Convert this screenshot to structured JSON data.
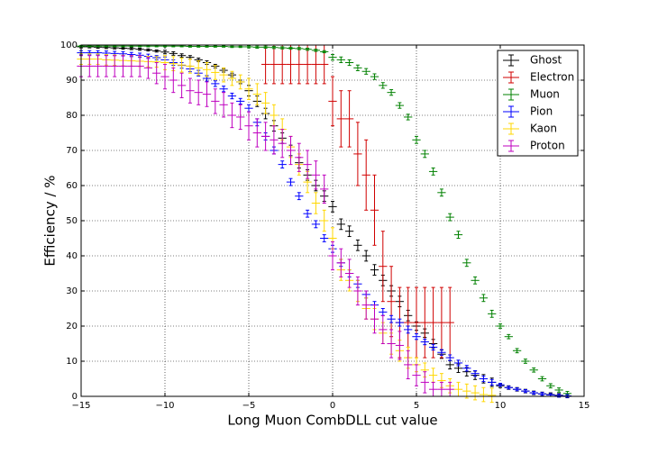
{
  "chart_data": {
    "type": "errorbar",
    "xlabel": "Long Muon CombDLL cut value",
    "ylabel": "Efficiency / %",
    "xlim": [
      -15,
      15
    ],
    "ylim": [
      0,
      100
    ],
    "xticks": [
      {
        "value": -15,
        "label": "−15"
      },
      {
        "value": -10,
        "label": "−10"
      },
      {
        "value": -5,
        "label": "−5"
      },
      0,
      5,
      10,
      15
    ],
    "yticks": [
      0,
      10,
      20,
      30,
      40,
      50,
      60,
      70,
      80,
      90,
      100
    ],
    "grid": true,
    "legend": "upper right",
    "xerr": 0.25,
    "x": [
      -15,
      -14.5,
      -14,
      -13.5,
      -13,
      -12.5,
      -12,
      -11.5,
      -11,
      -10.5,
      -10,
      -9.5,
      -9,
      -8.5,
      -8,
      -7.5,
      -7,
      -6.5,
      -6,
      -5.5,
      -5,
      -4.5,
      -4,
      -3.5,
      -3,
      -2.5,
      -2,
      -1.5,
      -1,
      -0.5,
      0,
      0.5,
      1,
      1.5,
      2,
      2.5,
      3,
      3.5,
      4,
      4.5,
      5,
      5.5,
      6,
      6.5,
      7,
      7.5,
      8,
      8.5,
      9,
      9.5,
      10,
      10.5,
      11,
      11.5,
      12,
      12.5,
      13,
      13.5,
      14,
      14.5
    ],
    "series": [
      {
        "name": "Ghost",
        "color": "#000000",
        "values": [
          99.5,
          99.5,
          99.4,
          99.3,
          99.2,
          99.1,
          99,
          98.8,
          98.6,
          98.3,
          98,
          97.6,
          97,
          96.5,
          95.8,
          95,
          94,
          92.8,
          91.5,
          89.5,
          87,
          84,
          80.5,
          77,
          73.5,
          70,
          66.5,
          63,
          60,
          57,
          54,
          49,
          47,
          43,
          40,
          36,
          33,
          30,
          27,
          23,
          20,
          18,
          15,
          12,
          9,
          8,
          7,
          6,
          5,
          4,
          3,
          2.5,
          2,
          1.5,
          1,
          0.7,
          0.5,
          0.3,
          0.1,
          null
        ],
        "errors": [
          0.3,
          0.3,
          0.3,
          0.3,
          0.3,
          0.3,
          0.3,
          0.3,
          0.3,
          0.3,
          0.5,
          0.5,
          0.5,
          0.5,
          0.5,
          0.5,
          0.5,
          0.5,
          0.5,
          0.5,
          1.5,
          1.5,
          1.5,
          1.5,
          1.5,
          1.5,
          1.5,
          1.5,
          1.5,
          1.5,
          1.5,
          1.5,
          1.5,
          1.5,
          1.5,
          1.5,
          1.5,
          1.5,
          1.5,
          1.5,
          1.2,
          1.2,
          1.2,
          1.2,
          1.2,
          1.2,
          1.2,
          1.2,
          1.2,
          1.2,
          0.5,
          0.5,
          0.5,
          0.5,
          0.5,
          0.5,
          0.5,
          0.5,
          0.5,
          null
        ]
      },
      {
        "name": "Electron",
        "color": "#d00000",
        "values": [
          null,
          null,
          null,
          null,
          null,
          null,
          null,
          null,
          null,
          null,
          null,
          null,
          null,
          null,
          null,
          null,
          null,
          null,
          null,
          null,
          null,
          null,
          94.5,
          94.5,
          94.5,
          94.5,
          94.5,
          94.5,
          94.5,
          94.5,
          84,
          79,
          79,
          69,
          63,
          53,
          37,
          27,
          21,
          21,
          21,
          21,
          21,
          21,
          21,
          null,
          null,
          null,
          null,
          null,
          null,
          null,
          null,
          null,
          null,
          null,
          null,
          null,
          null,
          null
        ],
        "errors": [
          null,
          null,
          null,
          null,
          null,
          null,
          null,
          null,
          null,
          null,
          null,
          null,
          null,
          null,
          null,
          null,
          null,
          null,
          null,
          null,
          null,
          null,
          5.5,
          5.5,
          5.5,
          5.5,
          5.5,
          5.5,
          5.5,
          5.5,
          7,
          8,
          8,
          9,
          10,
          10,
          10,
          10,
          10,
          10,
          10,
          10,
          10,
          10,
          10,
          null,
          null,
          null,
          null,
          null,
          null,
          null,
          null,
          null,
          null,
          null,
          null,
          null,
          null,
          null
        ]
      },
      {
        "name": "Muon",
        "color": "#008000",
        "values": [
          99.7,
          99.7,
          99.7,
          99.7,
          99.7,
          99.7,
          99.7,
          99.7,
          99.7,
          99.7,
          99.7,
          99.7,
          99.7,
          99.6,
          99.6,
          99.6,
          99.6,
          99.6,
          99.5,
          99.5,
          99.5,
          99.4,
          99.4,
          99.3,
          99.2,
          99.1,
          99,
          98.8,
          98.5,
          98.1,
          96.5,
          95.8,
          95,
          93.5,
          92.5,
          91,
          88.5,
          86.5,
          82.8,
          79.5,
          73,
          69,
          64,
          58,
          51,
          46,
          38,
          33,
          28,
          23.5,
          20,
          17,
          13,
          10,
          7.5,
          5,
          3,
          1.8,
          0.8,
          null
        ],
        "errors": [
          0.2,
          0.2,
          0.2,
          0.2,
          0.2,
          0.2,
          0.2,
          0.2,
          0.2,
          0.2,
          0.2,
          0.2,
          0.2,
          0.2,
          0.2,
          0.2,
          0.2,
          0.2,
          0.2,
          0.2,
          0.3,
          0.3,
          0.3,
          0.3,
          0.3,
          0.3,
          0.3,
          0.3,
          0.3,
          0.3,
          0.8,
          0.8,
          0.8,
          0.8,
          0.8,
          0.8,
          0.8,
          0.8,
          0.8,
          0.8,
          1,
          1,
          1,
          1,
          1,
          1,
          1,
          1,
          1,
          1,
          0.6,
          0.6,
          0.6,
          0.6,
          0.6,
          0.6,
          0.6,
          0.6,
          0.6,
          null
        ]
      },
      {
        "name": "Pion",
        "color": "#0000ff",
        "values": [
          97.8,
          97.8,
          97.8,
          97.7,
          97.6,
          97.5,
          97.3,
          97.1,
          96.8,
          96.4,
          95.8,
          95,
          94.2,
          93.2,
          92,
          90.5,
          89,
          87.5,
          85.5,
          84,
          82,
          78,
          74,
          70,
          66,
          61,
          57,
          52,
          49,
          45,
          42,
          38,
          35,
          32,
          29,
          26,
          24,
          22,
          21,
          19,
          17,
          15.5,
          14,
          12.5,
          11,
          9.5,
          8,
          6.5,
          5,
          4,
          3.3,
          2.5,
          2,
          1.5,
          1,
          0.7,
          0.4,
          0.2,
          0.1,
          null
        ],
        "errors": [
          0.6,
          0.6,
          0.6,
          0.6,
          0.6,
          0.6,
          0.6,
          0.6,
          0.6,
          0.6,
          0.8,
          0.8,
          0.8,
          0.8,
          0.8,
          0.8,
          0.8,
          0.8,
          0.8,
          0.8,
          1,
          1,
          1,
          1,
          1,
          1,
          1,
          1,
          1,
          1,
          1,
          1,
          1,
          1,
          1,
          1,
          1,
          1,
          1,
          1,
          0.8,
          0.8,
          0.8,
          0.8,
          0.8,
          0.8,
          0.8,
          0.8,
          0.8,
          0.8,
          0.4,
          0.4,
          0.4,
          0.4,
          0.4,
          0.4,
          0.4,
          0.4,
          0.4,
          null
        ]
      },
      {
        "name": "Kaon",
        "color": "#ffd700",
        "values": [
          96,
          96,
          96,
          95.8,
          95.7,
          95.6,
          95.5,
          95.4,
          95.3,
          95.2,
          95,
          94.7,
          94.3,
          94,
          93.5,
          93,
          92.2,
          91.5,
          90.5,
          89.5,
          87.5,
          86,
          83.5,
          80,
          76,
          71,
          66,
          61,
          55,
          50,
          45,
          36,
          33,
          30,
          25,
          22,
          18,
          15,
          13,
          11,
          9,
          7.5,
          6,
          4.5,
          3,
          2,
          1.5,
          1,
          0.5,
          0.3,
          null,
          null,
          null,
          null,
          null,
          null,
          null,
          null,
          null,
          null
        ],
        "errors": [
          1.5,
          1.5,
          1.5,
          1.5,
          1.5,
          1.5,
          1.5,
          1.5,
          1.5,
          1.5,
          2,
          2,
          2,
          2,
          2,
          2,
          2,
          2,
          2,
          2,
          3,
          3,
          3,
          3,
          3,
          3,
          3,
          3,
          3,
          3,
          3,
          3,
          3,
          3,
          3,
          3,
          3,
          3,
          3,
          3,
          2,
          2,
          2,
          2,
          2,
          2,
          2,
          2,
          2,
          2,
          null,
          null,
          null,
          null,
          null,
          null,
          null,
          null,
          null,
          null
        ]
      },
      {
        "name": "Proton",
        "color": "#bf00bf",
        "values": [
          94,
          94,
          94,
          94,
          94,
          94,
          94,
          94,
          93.5,
          92,
          91,
          90,
          88.5,
          87,
          86.5,
          86,
          84,
          83,
          80,
          79.5,
          77,
          75,
          74,
          73,
          72,
          70,
          68,
          66,
          63,
          59,
          40,
          38,
          35,
          30,
          26,
          22,
          19,
          15,
          14.5,
          9,
          6,
          4,
          2,
          2,
          2,
          null,
          null,
          null,
          null,
          null,
          null,
          null,
          null,
          null,
          null,
          null,
          null,
          null,
          null,
          null
        ],
        "errors": [
          3,
          3,
          3,
          3,
          3,
          3,
          3,
          3,
          3,
          3,
          3.5,
          3.5,
          3.5,
          3.5,
          3.5,
          3.5,
          3.5,
          3.5,
          3.5,
          3.5,
          4,
          4,
          4,
          4,
          4,
          4,
          4,
          4,
          4,
          4,
          4,
          4,
          4,
          4,
          4,
          4,
          4,
          4,
          4,
          4,
          3,
          3,
          2,
          2,
          2,
          null,
          null,
          null,
          null,
          null,
          null,
          null,
          null,
          null,
          null,
          null,
          null,
          null,
          null,
          null
        ]
      }
    ]
  }
}
